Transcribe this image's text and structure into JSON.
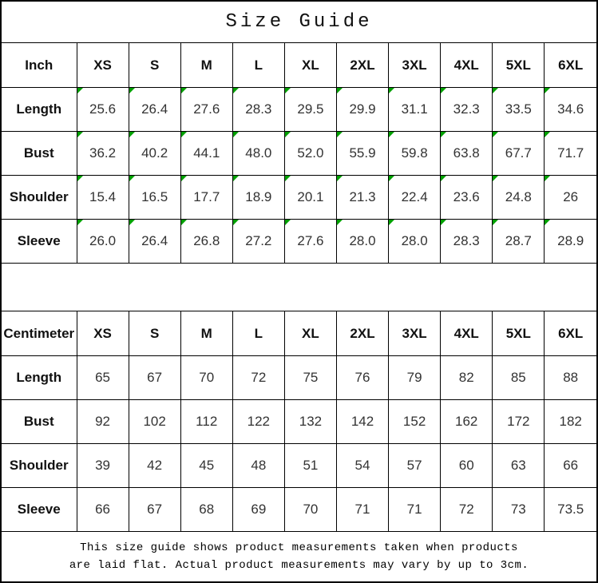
{
  "title": "Size Guide",
  "marker_color": "#00a000",
  "tables": [
    {
      "unit": "Inch",
      "has_markers": true,
      "sizes": [
        "XS",
        "S",
        "M",
        "L",
        "XL",
        "2XL",
        "3XL",
        "4XL",
        "5XL",
        "6XL"
      ],
      "rows": [
        {
          "label": "Length",
          "values": [
            "25.6",
            "26.4",
            "27.6",
            "28.3",
            "29.5",
            "29.9",
            "31.1",
            "32.3",
            "33.5",
            "34.6"
          ]
        },
        {
          "label": "Bust",
          "values": [
            "36.2",
            "40.2",
            "44.1",
            "48.0",
            "52.0",
            "55.9",
            "59.8",
            "63.8",
            "67.7",
            "71.7"
          ]
        },
        {
          "label": "Shoulder",
          "values": [
            "15.4",
            "16.5",
            "17.7",
            "18.9",
            "20.1",
            "21.3",
            "22.4",
            "23.6",
            "24.8",
            "26"
          ]
        },
        {
          "label": "Sleeve",
          "values": [
            "26.0",
            "26.4",
            "26.8",
            "27.2",
            "27.6",
            "28.0",
            "28.0",
            "28.3",
            "28.7",
            "28.9"
          ]
        }
      ]
    },
    {
      "unit": "Centimeter",
      "has_markers": false,
      "sizes": [
        "XS",
        "S",
        "M",
        "L",
        "XL",
        "2XL",
        "3XL",
        "4XL",
        "5XL",
        "6XL"
      ],
      "rows": [
        {
          "label": "Length",
          "values": [
            "65",
            "67",
            "70",
            "72",
            "75",
            "76",
            "79",
            "82",
            "85",
            "88"
          ]
        },
        {
          "label": "Bust",
          "values": [
            "92",
            "102",
            "112",
            "122",
            "132",
            "142",
            "152",
            "162",
            "172",
            "182"
          ]
        },
        {
          "label": "Shoulder",
          "values": [
            "39",
            "42",
            "45",
            "48",
            "51",
            "54",
            "57",
            "60",
            "63",
            "66"
          ]
        },
        {
          "label": "Sleeve",
          "values": [
            "66",
            "67",
            "68",
            "69",
            "70",
            "71",
            "71",
            "72",
            "73",
            "73.5"
          ]
        }
      ]
    }
  ],
  "footer": {
    "line1": "This size guide shows product measurements taken when products",
    "line2": "are laid flat. Actual product measurements may vary by up to 3cm."
  }
}
